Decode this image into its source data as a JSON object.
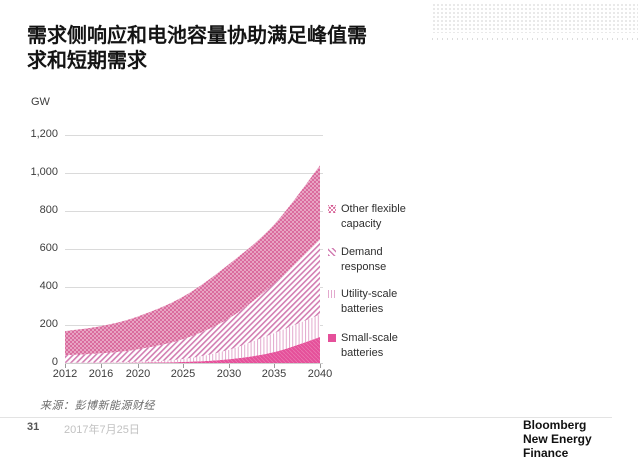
{
  "slide": {
    "title": "需求侧响应和电池容量协助满足峰值需求和短期需求",
    "source_note": "来源：彭博新能源财经",
    "page_number": "31",
    "date": "2017年7月25日",
    "logo_line1": "Bloomberg",
    "logo_line2": "New Energy Finance"
  },
  "chart_data": {
    "type": "area",
    "stacked": true,
    "unit_label": "GW",
    "x": [
      2012,
      2016,
      2020,
      2025,
      2030,
      2035,
      2040
    ],
    "x_tick_labels": [
      "2012",
      "2016",
      "2020",
      "2025",
      "2030",
      "2035",
      "2040"
    ],
    "xlim": [
      2012,
      2040
    ],
    "y_ticks": [
      0,
      200,
      400,
      600,
      800,
      1000,
      1200
    ],
    "y_tick_labels": [
      "0",
      "200",
      "400",
      "600",
      "800",
      "1,000",
      "1,200"
    ],
    "ylim": [
      0,
      1200
    ],
    "grid": true,
    "legend_position": "right",
    "series": [
      {
        "name": "Small-scale batteries",
        "pattern": "solid",
        "color": "#e5509a",
        "values": [
          0,
          1,
          2,
          6,
          20,
          58,
          137
        ]
      },
      {
        "name": "Utility-scale batteries",
        "pattern": "vertical-stripes",
        "color": "#e3a8cd",
        "values": [
          1,
          2,
          5,
          15,
          50,
          100,
          118
        ]
      },
      {
        "name": "Demand response",
        "pattern": "diagonal-stripes",
        "color": "#d27db2",
        "values": [
          40,
          48,
          65,
          105,
          165,
          262,
          395
        ]
      },
      {
        "name": "Other flexible capacity",
        "pattern": "crosshatch",
        "color": "#d4558f",
        "values": [
          127,
          144,
          173,
          224,
          285,
          310,
          390
        ]
      }
    ],
    "legend_order_top_to_bottom": [
      "Other flexible capacity",
      "Demand response",
      "Utility-scale batteries",
      "Small-scale batteries"
    ]
  }
}
